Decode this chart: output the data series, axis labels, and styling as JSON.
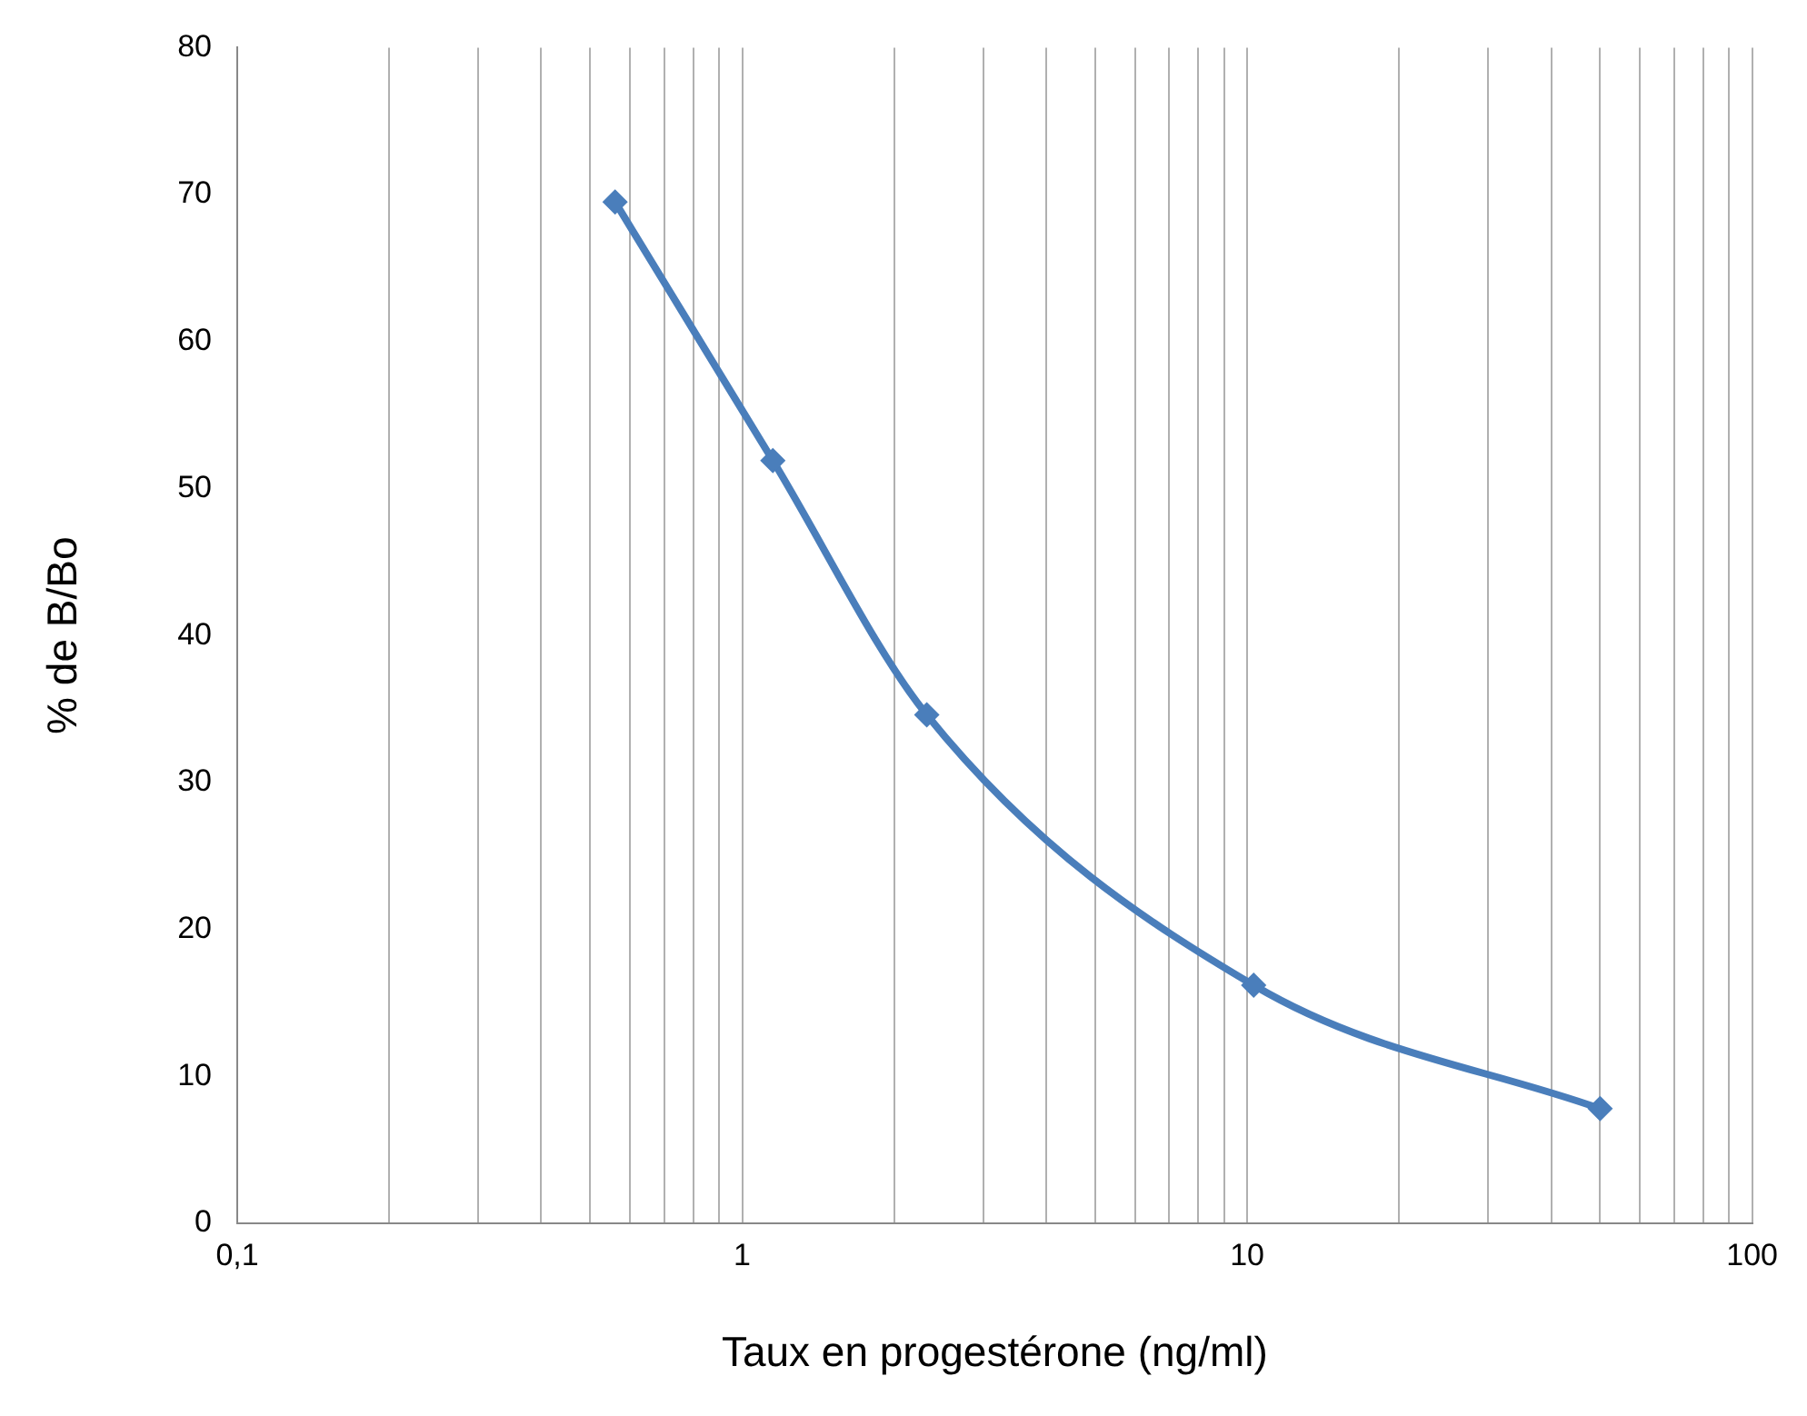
{
  "chart_data": {
    "type": "line",
    "xlabel": "Taux en progestérone (ng/ml)",
    "ylabel": "% de B/Bo",
    "log": "x",
    "x": [
      0.56,
      1.15,
      2.32,
      10.3,
      50
    ],
    "series": [
      {
        "color": "#4a7ebb",
        "values": [
          69.5,
          51.9,
          34.6,
          16.2,
          7.8
        ]
      }
    ],
    "xlim": [
      0.1,
      100
    ],
    "xticks": [
      {
        "value": 0.1,
        "label": "0,1"
      },
      {
        "value": 0.2,
        "label": null
      },
      {
        "value": 0.3,
        "label": null
      },
      {
        "value": 0.4,
        "label": null
      },
      {
        "value": 0.5,
        "label": null
      },
      {
        "value": 0.6,
        "label": null
      },
      {
        "value": 0.7,
        "label": null
      },
      {
        "value": 0.8,
        "label": null
      },
      {
        "value": 0.9,
        "label": null
      },
      1,
      {
        "value": 2,
        "label": null
      },
      {
        "value": 3,
        "label": null
      },
      {
        "value": 4,
        "label": null
      },
      {
        "value": 5,
        "label": null
      },
      {
        "value": 6,
        "label": null
      },
      {
        "value": 7,
        "label": null
      },
      {
        "value": 8,
        "label": null
      },
      {
        "value": 9,
        "label": null
      },
      10,
      {
        "value": 20,
        "label": null
      },
      {
        "value": 30,
        "label": null
      },
      {
        "value": 40,
        "label": null
      },
      {
        "value": 50,
        "label": null
      },
      {
        "value": 60,
        "label": null
      },
      {
        "value": 70,
        "label": null
      },
      {
        "value": 80,
        "label": null
      },
      {
        "value": 90,
        "label": null
      },
      100
    ],
    "ylim": [
      0,
      80
    ],
    "yticks": [
      0,
      10,
      20,
      30,
      40,
      50,
      60,
      70,
      80
    ],
    "grid": "x",
    "marker": "diamond",
    "line_style": "solid",
    "legend": false
  }
}
